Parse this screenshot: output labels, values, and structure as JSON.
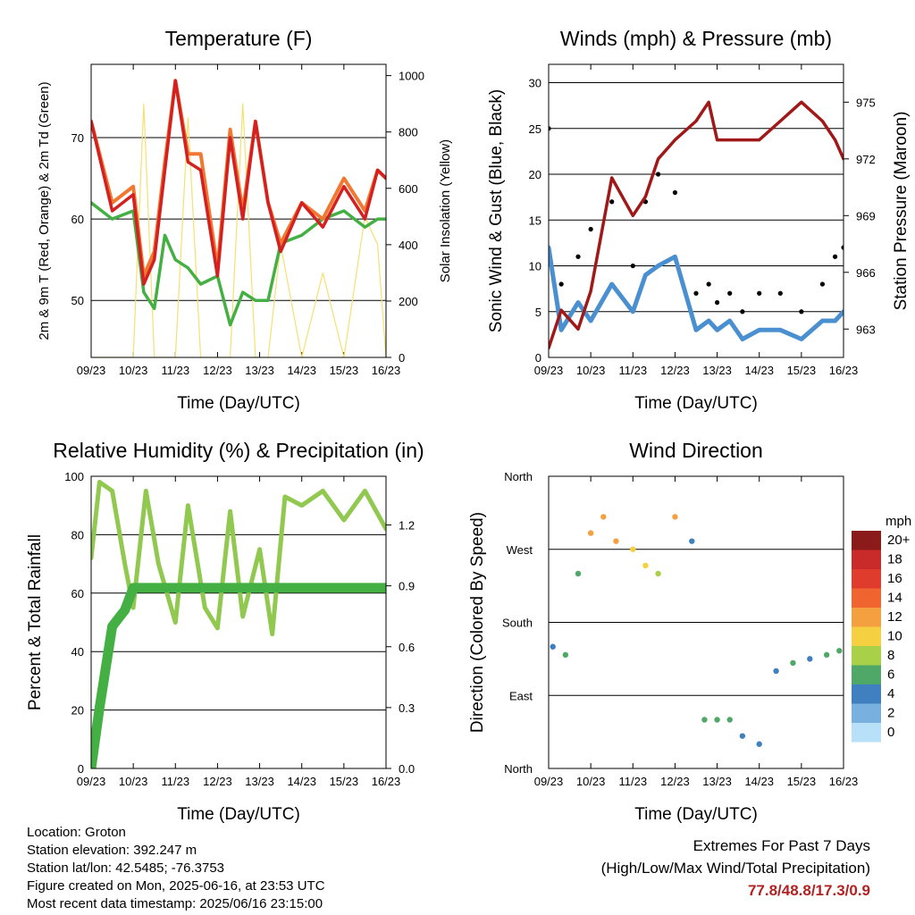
{
  "x_tick_labels": [
    "09/23",
    "10/23",
    "11/23",
    "12/23",
    "13/23",
    "14/23",
    "15/23",
    "16/23"
  ],
  "colors": {
    "temp_2m": "#d42020",
    "temp_9m": "#f07830",
    "dewpoint": "#44b044",
    "solar": "#f5e070",
    "wind": "#4a90d0",
    "gust": "#000000",
    "pressure": "#a01818",
    "rh": "#90c850",
    "precip": "#44b044"
  },
  "chart_data": [
    {
      "type": "line",
      "title": "Temperature (F)",
      "xlabel": "Time (Day/UTC)",
      "ylabel": "2m & 9m T (Red, Orange) & 2m Td (Green)",
      "ylabel_right": "Solar Insolation (Yellow)",
      "x": [
        9,
        9.5,
        10,
        10.25,
        10.5,
        10.75,
        11,
        11.3,
        11.6,
        12,
        12.3,
        12.6,
        12.9,
        13.2,
        13.5,
        14,
        14.5,
        15,
        15.5,
        15.8,
        16
      ],
      "ylim": [
        43,
        79
      ],
      "y_ticks": [
        50,
        60,
        70
      ],
      "y2lim": [
        0,
        1040
      ],
      "y2_ticks": [
        0,
        200,
        400,
        600,
        800,
        1000
      ],
      "series": [
        {
          "values": [
            72,
            61,
            63,
            52,
            55,
            66,
            77,
            67,
            66,
            53,
            70,
            60,
            72,
            62,
            56,
            62,
            59,
            64,
            60,
            66,
            65
          ]
        },
        {
          "values": [
            72,
            62,
            64,
            53,
            56,
            67,
            77,
            68,
            68,
            54,
            71,
            61,
            72,
            62,
            57,
            62,
            60,
            65,
            61,
            66,
            65
          ]
        },
        {
          "values": [
            62,
            60,
            61,
            51,
            49,
            58,
            55,
            54,
            52,
            53,
            47,
            51,
            50,
            50,
            57,
            58,
            60,
            61,
            59,
            60,
            60
          ]
        },
        {
          "values": [
            0,
            0,
            0,
            900,
            0,
            0,
            0,
            850,
            0,
            0,
            0,
            900,
            0,
            0,
            400,
            0,
            300,
            0,
            500,
            400,
            0
          ]
        }
      ]
    },
    {
      "type": "line",
      "title": "Winds (mph) & Pressure (mb)",
      "xlabel": "Time (Day/UTC)",
      "ylabel": "Sonic Wind & Gust (Blue, Black)",
      "ylabel_right": "Station Pressure (Maroon)",
      "x": [
        9,
        9.3,
        9.7,
        10,
        10.5,
        11,
        11.3,
        11.6,
        12,
        12.5,
        12.8,
        13,
        13.3,
        13.6,
        14,
        14.5,
        15,
        15.5,
        15.8,
        16
      ],
      "ylim": [
        0,
        32
      ],
      "y_ticks": [
        0,
        5,
        10,
        15,
        20,
        25,
        30
      ],
      "y2lim": [
        961.5,
        977
      ],
      "y2_ticks": [
        963,
        966,
        969,
        972,
        975
      ],
      "series": [
        {
          "values": [
            12,
            3,
            6,
            4,
            8,
            5,
            9,
            10,
            11,
            3,
            4,
            3,
            4,
            2,
            3,
            3,
            2,
            4,
            4,
            5
          ]
        },
        {
          "values": [
            25,
            8,
            11,
            14,
            17,
            10,
            17,
            20,
            18,
            7,
            8,
            6,
            7,
            5,
            7,
            7,
            5,
            8,
            11,
            12
          ]
        },
        {
          "values": [
            962,
            964,
            963,
            965,
            971,
            969,
            970,
            972,
            973,
            974,
            975,
            973,
            973,
            973,
            973,
            974,
            975,
            974,
            973,
            972
          ]
        }
      ]
    },
    {
      "type": "line",
      "title": "Relative Humidity (%) & Precipitation (in)",
      "xlabel": "Time (Day/UTC)",
      "ylabel": "Percent & Total Rainfall",
      "x": [
        9,
        9.2,
        9.5,
        9.8,
        10,
        10.3,
        10.6,
        11,
        11.3,
        11.7,
        12,
        12.3,
        12.6,
        13,
        13.3,
        13.6,
        14,
        14.5,
        15,
        15.5,
        16
      ],
      "ylim": [
        0,
        100
      ],
      "y_ticks": [
        0,
        20,
        40,
        60,
        80,
        100
      ],
      "y2lim": [
        0,
        1.44
      ],
      "y2_ticks": [
        0.0,
        0.3,
        0.6,
        0.9,
        1.2
      ],
      "series": [
        {
          "values": [
            72,
            98,
            95,
            70,
            55,
            95,
            70,
            50,
            90,
            55,
            48,
            88,
            52,
            75,
            46,
            93,
            90,
            95,
            85,
            95,
            82
          ]
        },
        {
          "values": [
            0,
            0.3,
            0.7,
            0.78,
            0.89,
            0.89,
            0.89,
            0.89,
            0.89,
            0.89,
            0.89,
            0.89,
            0.89,
            0.89,
            0.89,
            0.89,
            0.89,
            0.89,
            0.89,
            0.89,
            0.89
          ]
        }
      ]
    },
    {
      "type": "scatter",
      "title": "Wind Direction",
      "xlabel": "Time (Day/UTC)",
      "ylabel": "Direction (Colored By Speed)",
      "y_tick_labels": [
        "North",
        "East",
        "South",
        "West",
        "North"
      ],
      "ylim": [
        0,
        360
      ],
      "legend_title": "mph",
      "legend_labels": [
        "20+",
        "18",
        "16",
        "14",
        "12",
        "10",
        "8",
        "6",
        "4",
        "2",
        "0"
      ],
      "legend_colors": [
        "#8b1a1a",
        "#c92a2a",
        "#e03c2e",
        "#f06430",
        "#f5a040",
        "#f5d040",
        "#a8d048",
        "#50a868",
        "#4080c0",
        "#78b0e0",
        "#b8e0f8"
      ],
      "x": [
        9.1,
        9.4,
        9.7,
        10,
        10.3,
        10.6,
        11,
        11.3,
        11.6,
        12,
        12.4,
        12.7,
        13,
        13.3,
        13.6,
        14,
        14.4,
        14.8,
        15.2,
        15.6,
        15.9
      ],
      "y": [
        150,
        140,
        240,
        290,
        310,
        280,
        270,
        250,
        240,
        310,
        280,
        60,
        60,
        60,
        40,
        30,
        120,
        130,
        135,
        140,
        145
      ],
      "speed": [
        4,
        5,
        6,
        12,
        11,
        12,
        10,
        9,
        8,
        12,
        3,
        6,
        5,
        5,
        3,
        3,
        4,
        5,
        3,
        5,
        6
      ]
    }
  ],
  "info": {
    "location": "Location: Groton",
    "elevation": "Station elevation: 392.247 m",
    "latlon": "Station lat/lon: 42.5485; -76.3753",
    "created": "Figure created on Mon, 2025-06-16, at 23:53 UTC",
    "recent": "Most recent data timestamp: 2025/06/16 23:15:00"
  },
  "extremes": {
    "title": "Extremes For Past 7 Days",
    "subtitle": "(High/Low/Max Wind/Total Precipitation)",
    "values": "77.8/48.8/17.3/0.9"
  }
}
